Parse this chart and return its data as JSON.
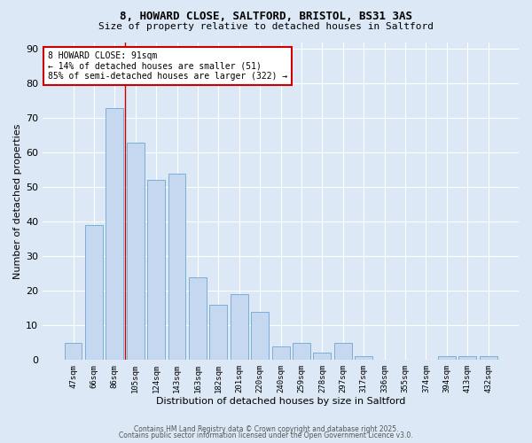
{
  "title_line1": "8, HOWARD CLOSE, SALTFORD, BRISTOL, BS31 3AS",
  "title_line2": "Size of property relative to detached houses in Saltford",
  "xlabel": "Distribution of detached houses by size in Saltford",
  "ylabel": "Number of detached properties",
  "bar_color": "#c5d8f0",
  "bar_edge_color": "#7aafd4",
  "background_color": "#dce8f5",
  "grid_color": "#ffffff",
  "categories": [
    "47sqm",
    "66sqm",
    "86sqm",
    "105sqm",
    "124sqm",
    "143sqm",
    "163sqm",
    "182sqm",
    "201sqm",
    "220sqm",
    "240sqm",
    "259sqm",
    "278sqm",
    "297sqm",
    "317sqm",
    "336sqm",
    "355sqm",
    "374sqm",
    "394sqm",
    "413sqm",
    "432sqm"
  ],
  "values": [
    5,
    39,
    73,
    63,
    52,
    54,
    24,
    16,
    19,
    14,
    4,
    5,
    2,
    5,
    1,
    0,
    0,
    0,
    1,
    1,
    1
  ],
  "ylim": [
    0,
    92
  ],
  "yticks": [
    0,
    10,
    20,
    30,
    40,
    50,
    60,
    70,
    80,
    90
  ],
  "property_line_idx": 2,
  "property_line_color": "#cc0000",
  "annotation_line1": "8 HOWARD CLOSE: 91sqm",
  "annotation_line2": "← 14% of detached houses are smaller (51)",
  "annotation_line3": "85% of semi-detached houses are larger (322) →",
  "annotation_box_color": "#cc0000",
  "footer_text1": "Contains HM Land Registry data © Crown copyright and database right 2025.",
  "footer_text2": "Contains public sector information licensed under the Open Government Licence v3.0."
}
